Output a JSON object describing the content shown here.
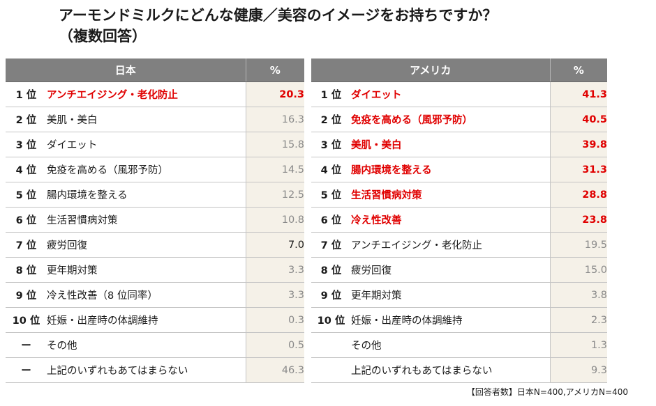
{
  "title": "アーモンドミルクにどんな健康／美容のイメージをお持ちですか？",
  "subtitle": "（複数回答）",
  "japan": {
    "header": "日本",
    "pct_header": "%",
    "rows": [
      {
        "rank": "1 位",
        "item": "アンチエイジング・老化防止",
        "value": "20.3",
        "highlight": true
      },
      {
        "rank": "2 位",
        "item": "美肌・美白",
        "value": "16.3",
        "highlight": false
      },
      {
        "rank": "3 位",
        "item": "ダイエット",
        "value": "15.8",
        "highlight": false
      },
      {
        "rank": "4 位",
        "item": "免疫を高める（風邪予防）",
        "value": "14.5",
        "highlight": false
      },
      {
        "rank": "5 位",
        "item": "腸内環境を整える",
        "value": "12.5",
        "highlight": false
      },
      {
        "rank": "6 位",
        "item": "生活習慣病対策",
        "value": "10.8",
        "highlight": false
      },
      {
        "rank": "7 位",
        "item": "疲労回復",
        "value": "7.0",
        "highlight": false
      },
      {
        "rank": "8 位",
        "item": "更年期対策",
        "value": "3.3",
        "highlight": false
      },
      {
        "rank": "9 位",
        "item": "冷え性改善（8 位同率）",
        "value": "3.3",
        "highlight": false
      },
      {
        "rank": "10 位",
        "item": "妊娠・出産時の体調維持",
        "value": "0.3",
        "highlight": false
      },
      {
        "rank": "ー",
        "item": "その他",
        "value": "0.5",
        "highlight": false
      },
      {
        "rank": "ー",
        "item": "上記のいずれもあてはまらない",
        "value": "46.3",
        "highlight": false
      }
    ]
  },
  "usa": {
    "header": "アメリカ",
    "pct_header": "%",
    "rows": [
      {
        "rank": "1 位",
        "item": "ダイエット",
        "value": "41.3",
        "highlight": true
      },
      {
        "rank": "2 位",
        "item": "免疫を高める（風邪予防）",
        "value": "40.5",
        "highlight": true
      },
      {
        "rank": "3 位",
        "item": "美肌・美白",
        "value": "39.8",
        "highlight": true
      },
      {
        "rank": "4 位",
        "item": "腸内環境を整える",
        "value": "31.3",
        "highlight": true
      },
      {
        "rank": "5 位",
        "item": "生活習慣病対策",
        "value": "28.8",
        "highlight": true
      },
      {
        "rank": "6 位",
        "item": "冷え性改善",
        "value": "23.8",
        "highlight": true
      },
      {
        "rank": "7 位",
        "item": "アンチエイジング・老化防止",
        "value": "19.5",
        "highlight": false
      },
      {
        "rank": "8 位",
        "item": "疲労回復",
        "value": "15.0",
        "highlight": false
      },
      {
        "rank": "9 位",
        "item": "更年期対策",
        "value": "3.8",
        "highlight": false
      },
      {
        "rank": "10 位",
        "item": "妊娠・出産時の体調維持",
        "value": "2.3",
        "highlight": false
      },
      {
        "rank": "",
        "item": "その他",
        "value": "1.3",
        "highlight": false
      },
      {
        "rank": "",
        "item": "上記のいずれもあてはまらない",
        "value": "9.3",
        "highlight": false
      }
    ]
  },
  "footnote": "【回答者数】日本N=400,アメリカN=400",
  "colors": {
    "header_bg": "#808080",
    "highlight": "#e00000",
    "pct_bg": "#f5f1e8",
    "muted_value": "#8a8a8a"
  }
}
